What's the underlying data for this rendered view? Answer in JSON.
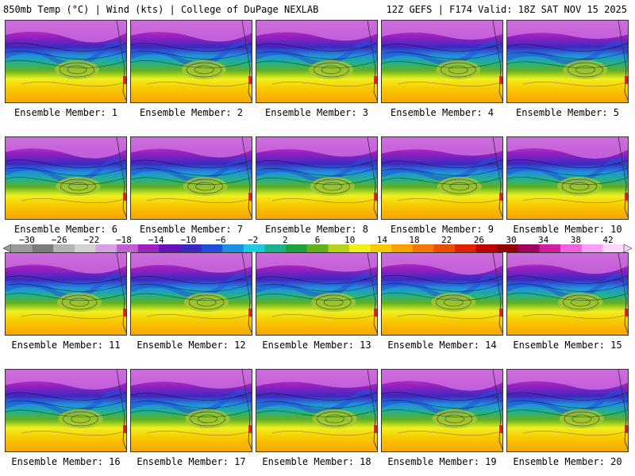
{
  "header": {
    "left": "850mb Temp (°C) | Wind (kts) | College of DuPage NEXLAB",
    "right": "12Z GEFS | F174 Valid: 18Z SAT NOV 15 2025"
  },
  "panel_label_prefix": "Ensemble Member: ",
  "members": [
    1,
    2,
    3,
    4,
    5,
    6,
    7,
    8,
    9,
    10,
    11,
    12,
    13,
    14,
    15,
    16,
    17,
    18,
    19,
    20
  ],
  "colorbar": {
    "labels": [
      "−30",
      "−26",
      "−22",
      "−18",
      "−14",
      "−10",
      "−6",
      "−2",
      "2",
      "6",
      "10",
      "14",
      "18",
      "22",
      "26",
      "30",
      "34",
      "38",
      "42"
    ],
    "colors": [
      "#9a9a9a",
      "#7c7c7c",
      "#b4b4b4",
      "#d2d2d2",
      "#d6a0e6",
      "#c060d0",
      "#a020c0",
      "#6a10b8",
      "#3c28c0",
      "#2050d8",
      "#2090e0",
      "#20c8e0",
      "#20b090",
      "#20a040",
      "#60b020",
      "#b8d020",
      "#f0f020",
      "#f8c800",
      "#f8a000",
      "#f07800",
      "#e85000",
      "#e02000",
      "#c00000",
      "#900000",
      "#a00060",
      "#d020a0",
      "#f060e0",
      "#f8a0f8",
      "#ffd8ff"
    ],
    "values_min": -30,
    "values_max": 42
  }
}
